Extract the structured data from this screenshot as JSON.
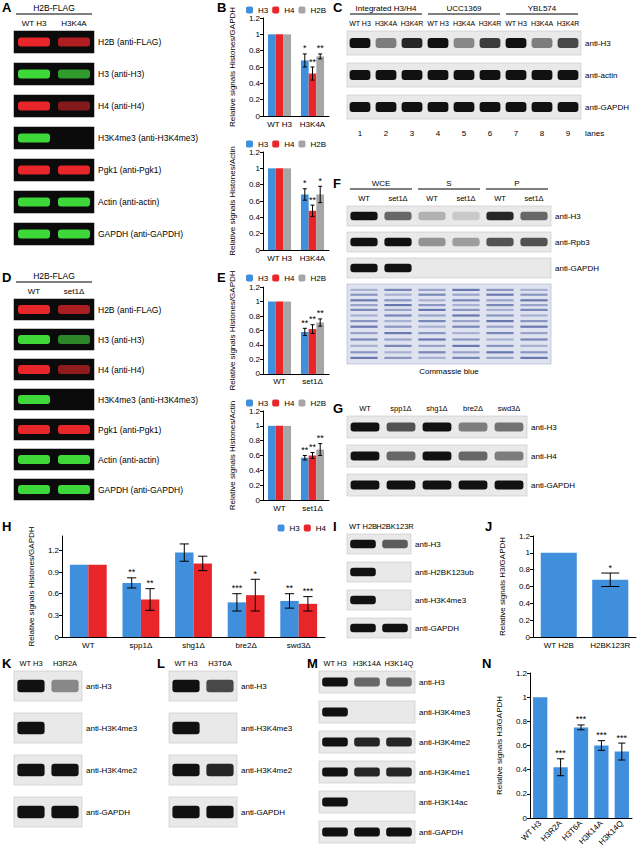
{
  "blots": [
    {
      "panel": "A",
      "header": "H2B-FLAG",
      "lanes": [
        "WT H3",
        "H3K4A"
      ],
      "rows": [
        {
          "label": "H2B (anti-FLAG)",
          "color": "#e8262a",
          "bands": [
            1,
            0.75
          ]
        },
        {
          "label": "H3 (anti-H3)",
          "color": "#3fd83a",
          "bands": [
            1,
            0.7
          ]
        },
        {
          "label": "H4 (anti-H4)",
          "color": "#e8262a",
          "bands": [
            1,
            0.55
          ]
        },
        {
          "label": "H3K4me3 (anti-H3K4me3)",
          "color": "#3fd83a",
          "bands": [
            1,
            0
          ]
        },
        {
          "label": "Pgk1 (anti-Pgk1)",
          "color": "#e8262a",
          "bands": [
            1,
            1
          ]
        },
        {
          "label": "Actin (anti-actin)",
          "color": "#3fd83a",
          "bands": [
            1,
            1
          ]
        },
        {
          "label": "GAPDH (anti-GAPDH)",
          "color": "#3fd83a",
          "bands": [
            1,
            1
          ]
        }
      ]
    },
    {
      "panel": "C",
      "groups": [
        {
          "name": "Integrated H3/H4",
          "lanes": [
            "WT H3",
            "H3K4A",
            "H3K4R"
          ]
        },
        {
          "name": "UCC1369",
          "lanes": [
            "WT H3",
            "H3K4A",
            "H3K4R"
          ]
        },
        {
          "name": "YBL574",
          "lanes": [
            "WT H3",
            "H3K4A",
            "H3K4R"
          ]
        }
      ],
      "rows": [
        {
          "label": "anti-H3",
          "bands": [
            1,
            0.5,
            0.9,
            1,
            0.45,
            0.8,
            1,
            0.5,
            0.75
          ]
        },
        {
          "label": "anti-actin",
          "bands": [
            1,
            1,
            1,
            1,
            1,
            1,
            1,
            1,
            1
          ]
        },
        {
          "label": "anti-GAPDH",
          "bands": [
            1,
            1,
            1,
            1,
            1,
            1,
            1,
            1,
            1
          ]
        }
      ],
      "lane_numbers": [
        1,
        2,
        3,
        4,
        5,
        6,
        7,
        8,
        9
      ],
      "lane_numbers_label": "lanes"
    },
    {
      "panel": "D",
      "header": "H2B-FLAG",
      "lanes": [
        "WT",
        "set1Δ"
      ],
      "rows": [
        {
          "label": "H2B (anti-FLAG)",
          "color": "#e8262a",
          "bands": [
            1,
            0.72
          ]
        },
        {
          "label": "H3 (anti-H3)",
          "color": "#3fd83a",
          "bands": [
            1,
            0.6
          ]
        },
        {
          "label": "H4 (anti-H4)",
          "color": "#e8262a",
          "bands": [
            1,
            0.6
          ]
        },
        {
          "label": "H3K4me3 (anti-H3K4me3)",
          "color": "#3fd83a",
          "bands": [
            1,
            0
          ]
        },
        {
          "label": "Pgk1 (anti-Pgk1)",
          "color": "#e8262a",
          "bands": [
            1,
            1
          ]
        },
        {
          "label": "Actin (anti-actin)",
          "color": "#3fd83a",
          "bands": [
            1,
            1
          ]
        },
        {
          "label": "GAPDH (anti-GAPDH)",
          "color": "#3fd83a",
          "bands": [
            1,
            1
          ]
        }
      ]
    },
    {
      "panel": "F",
      "groups": [
        {
          "name": "WCE",
          "lanes": [
            "WT",
            "set1Δ"
          ]
        },
        {
          "name": "S",
          "lanes": [
            "WT",
            "set1Δ"
          ]
        },
        {
          "name": "P",
          "lanes": [
            "WT",
            "set1Δ"
          ]
        }
      ],
      "rows": [
        {
          "label": "anti-H3",
          "bands": [
            1,
            0.6,
            0.25,
            0.15,
            0.9,
            0.6
          ]
        },
        {
          "label": "anti-Rpb3",
          "bands": [
            1,
            1,
            0.4,
            0.35,
            0.7,
            0.7
          ]
        },
        {
          "label": "anti-GAPDH",
          "bands": [
            1,
            1,
            0,
            0,
            0,
            0
          ]
        }
      ],
      "gel": {
        "label": "Commassie blue",
        "color": "#2b3f8f"
      }
    },
    {
      "panel": "G",
      "lanes": [
        "WT",
        "spp1Δ",
        "shg1Δ",
        "bre2Δ",
        "swd3Δ"
      ],
      "rows": [
        {
          "label": "anti-H3",
          "bands": [
            1,
            0.7,
            1,
            0.5,
            0.55
          ]
        },
        {
          "label": "anti-H4",
          "bands": [
            1,
            0.6,
            1,
            0.6,
            0.5
          ]
        },
        {
          "label": "anti-GAPDH",
          "bands": [
            1,
            1,
            1,
            1,
            1
          ]
        }
      ]
    },
    {
      "panel": "I",
      "lanes": [
        "WT H2B",
        "H2BK123R"
      ],
      "rows": [
        {
          "label": "anti-H3",
          "bands": [
            1,
            0.65
          ]
        },
        {
          "label": "anti-H2BK123ub",
          "bands": [
            1,
            0
          ]
        },
        {
          "label": "anti-H3K4me3",
          "bands": [
            1,
            0
          ]
        },
        {
          "label": "anti-GAPDH",
          "bands": [
            1,
            1
          ]
        }
      ]
    },
    {
      "panel": "K",
      "lanes": [
        "WT H3",
        "H3R2A"
      ],
      "rows": [
        {
          "label": "anti-H3",
          "bands": [
            1,
            0.45
          ]
        },
        {
          "label": "anti-H3K4me3",
          "bands": [
            1,
            0
          ]
        },
        {
          "label": "anti-H3K4me2",
          "bands": [
            1,
            1
          ]
        },
        {
          "label": "anti-GAPDH",
          "bands": [
            1,
            1
          ]
        }
      ]
    },
    {
      "panel": "L",
      "lanes": [
        "WT H3",
        "H3T6A"
      ],
      "rows": [
        {
          "label": "anti-H3",
          "bands": [
            1,
            0.75
          ]
        },
        {
          "label": "anti-H3K4me3",
          "bands": [
            1,
            0
          ]
        },
        {
          "label": "anti-H3K4me2",
          "bands": [
            1,
            0.9
          ]
        },
        {
          "label": "anti-GAPDH",
          "bands": [
            1,
            1
          ]
        }
      ]
    },
    {
      "panel": "M",
      "lanes": [
        "WT H3",
        "H3K14A",
        "H3K14Q"
      ],
      "rows": [
        {
          "label": "anti-H3",
          "bands": [
            1,
            0.6,
            0.6
          ]
        },
        {
          "label": "anti-H3K4me3",
          "bands": [
            1,
            0,
            0
          ]
        },
        {
          "label": "anti-H3K4me2",
          "bands": [
            1,
            0.9,
            0.9
          ]
        },
        {
          "label": "anti-H3K4me1",
          "bands": [
            1,
            0.9,
            0.9
          ]
        },
        {
          "label": "anti-H3K14ac",
          "bands": [
            1,
            0,
            0
          ]
        },
        {
          "label": "anti-GAPDH",
          "bands": [
            1,
            1,
            1
          ]
        }
      ]
    }
  ],
  "chart_data": [
    {
      "panel": "B",
      "type": "bar",
      "ylabel": "Relative signals Histones/GAPDH",
      "categories": [
        "WT H3",
        "H3K4A"
      ],
      "series": [
        {
          "name": "H3",
          "color": "#3f8fdc",
          "values": [
            1,
            0.68
          ],
          "errors": [
            0,
            0.08
          ],
          "significance": [
            null,
            "*"
          ]
        },
        {
          "name": "H4",
          "color": "#e8262a",
          "values": [
            1,
            0.52
          ],
          "errors": [
            0,
            0.08
          ],
          "significance": [
            null,
            "**"
          ]
        },
        {
          "name": "H2B",
          "color": "#a6a6a6",
          "values": [
            1,
            0.73
          ],
          "errors": [
            0,
            0.03
          ],
          "significance": [
            null,
            "**"
          ]
        }
      ],
      "ylim": [
        0,
        1.2
      ],
      "yticks": [
        0,
        0.2,
        0.4,
        0.6,
        0.8,
        1,
        1.2
      ],
      "grid": false,
      "legend": "top-right"
    },
    {
      "panel": "B",
      "type": "bar",
      "ylabel": "Relative signals Histones/Actin",
      "categories": [
        "WT H3",
        "H3K4A"
      ],
      "series": [
        {
          "name": "H3",
          "color": "#3f8fdc",
          "values": [
            1,
            0.68
          ],
          "errors": [
            0,
            0.07
          ],
          "significance": [
            null,
            "*"
          ]
        },
        {
          "name": "H4",
          "color": "#e8262a",
          "values": [
            1,
            0.48
          ],
          "errors": [
            0,
            0.07
          ],
          "significance": [
            null,
            "**"
          ]
        },
        {
          "name": "H2B",
          "color": "#a6a6a6",
          "values": [
            1,
            0.68
          ],
          "errors": [
            0,
            0.1
          ],
          "significance": [
            null,
            "*"
          ]
        }
      ],
      "ylim": [
        0,
        1.2
      ],
      "yticks": [
        0,
        0.2,
        0.4,
        0.6,
        0.8,
        1,
        1.2
      ],
      "grid": false,
      "legend": "top-right"
    },
    {
      "panel": "E",
      "type": "bar",
      "ylabel": "Relative signals Histones/GAPDH",
      "categories": [
        "WT",
        "set1Δ"
      ],
      "series": [
        {
          "name": "H3",
          "color": "#3f8fdc",
          "values": [
            1,
            0.58
          ],
          "errors": [
            0,
            0.05
          ],
          "significance": [
            null,
            "**"
          ]
        },
        {
          "name": "H4",
          "color": "#e8262a",
          "values": [
            1,
            0.62
          ],
          "errors": [
            0,
            0.06
          ],
          "significance": [
            null,
            "**"
          ]
        },
        {
          "name": "H2B",
          "color": "#a6a6a6",
          "values": [
            1,
            0.71
          ],
          "errors": [
            0,
            0.05
          ],
          "significance": [
            null,
            "**"
          ]
        }
      ],
      "ylim": [
        0,
        1.2
      ],
      "yticks": [
        0,
        0.2,
        0.4,
        0.6,
        0.8,
        1,
        1.2
      ],
      "grid": false,
      "legend": "top-right"
    },
    {
      "panel": "E",
      "type": "bar",
      "ylabel": "Relative signals Histones/Actin",
      "categories": [
        "WT",
        "set1Δ"
      ],
      "series": [
        {
          "name": "H3",
          "color": "#3f8fdc",
          "values": [
            1,
            0.57
          ],
          "errors": [
            0,
            0.03
          ],
          "significance": [
            null,
            "**"
          ]
        },
        {
          "name": "H4",
          "color": "#e8262a",
          "values": [
            1,
            0.6
          ],
          "errors": [
            0,
            0.04
          ],
          "significance": [
            null,
            "**"
          ]
        },
        {
          "name": "H2B",
          "color": "#a6a6a6",
          "values": [
            1,
            0.68
          ],
          "errors": [
            0,
            0.08
          ],
          "significance": [
            null,
            "**"
          ]
        }
      ],
      "ylim": [
        0,
        1.2
      ],
      "yticks": [
        0,
        0.2,
        0.4,
        0.6,
        0.8,
        1,
        1.2
      ],
      "grid": false,
      "legend": "top-right"
    },
    {
      "panel": "H",
      "type": "bar",
      "ylabel": "Relative signals Histones/GAPDH",
      "categories": [
        "WT",
        "spp1Δ",
        "shg1Δ",
        "bre2Δ",
        "swd3Δ"
      ],
      "series": [
        {
          "name": "H3",
          "color": "#3f8fdc",
          "values": [
            1,
            0.75,
            1.17,
            0.48,
            0.5
          ],
          "errors": [
            0,
            0.07,
            0.12,
            0.12,
            0.1
          ],
          "significance": [
            null,
            "**",
            null,
            "***",
            "**"
          ]
        },
        {
          "name": "H4",
          "color": "#e8262a",
          "values": [
            1,
            0.52,
            1.02,
            0.58,
            0.46
          ],
          "errors": [
            0,
            0.15,
            0.1,
            0.22,
            0.1
          ],
          "significance": [
            null,
            "**",
            null,
            "*",
            "***"
          ]
        }
      ],
      "ylim": [
        0,
        1.4
      ],
      "yticks": [
        0,
        0.3,
        0.6,
        0.9,
        1.2
      ],
      "grid": false,
      "legend": "top-right"
    },
    {
      "panel": "J",
      "type": "bar",
      "ylabel": "Relative signals H3/GAPDH",
      "categories": [
        "WT H2B",
        "H2BK123R"
      ],
      "values": [
        1,
        0.68
      ],
      "errors": [
        0,
        0.08
      ],
      "significance": [
        null,
        "*"
      ],
      "color": "#3f8fdc",
      "ylim": [
        0,
        1.2
      ],
      "yticks": [
        0,
        0.2,
        0.4,
        0.6,
        0.8,
        1,
        1.2
      ],
      "grid": false
    },
    {
      "panel": "N",
      "type": "bar",
      "ylabel": "Relative signals H3/GAPDH",
      "categories": [
        "WT H3",
        "H3R2A",
        "H3T6A",
        "H3K14A",
        "H3K14Q"
      ],
      "values": [
        1,
        0.42,
        0.75,
        0.6,
        0.55
      ],
      "errors": [
        0,
        0.07,
        0.02,
        0.04,
        0.07
      ],
      "significance": [
        null,
        "***",
        "***",
        "***",
        "***"
      ],
      "color": "#3f8fdc",
      "ylim": [
        0,
        1.2
      ],
      "yticks": [
        0,
        0.2,
        0.4,
        0.6,
        0.8,
        1,
        1.2
      ],
      "grid": false
    }
  ]
}
